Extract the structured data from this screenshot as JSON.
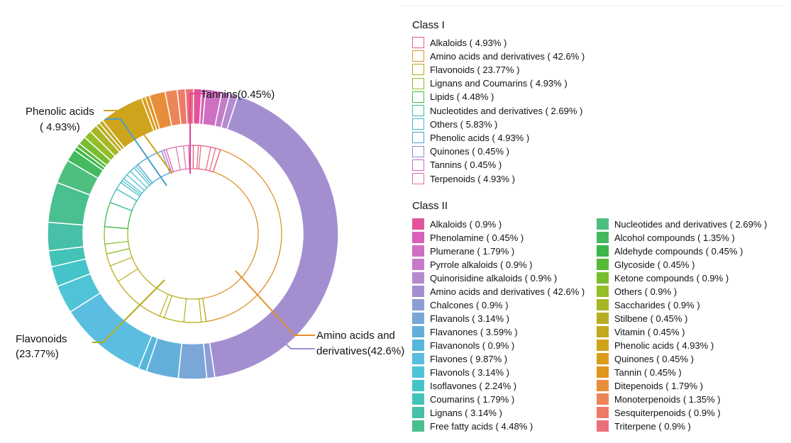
{
  "chart_data": {
    "type": "sunburst",
    "classI_title": "Class I",
    "classII_title": "Class II",
    "classI": [
      {
        "label": "Alkaloids ( 4.93% )",
        "name": "Alkaloids",
        "value": 4.93,
        "color": "#e8607e"
      },
      {
        "label": "Amino acids and derivatives ( 42.6% )",
        "name": "Amino acids and derivatives",
        "value": 42.6,
        "color": "#e0902a"
      },
      {
        "label": "Flavonoids ( 23.77% )",
        "name": "Flavonoids",
        "value": 23.77,
        "color": "#b8ac1a"
      },
      {
        "label": "Lignans and Coumarins ( 4.93% )",
        "name": "Lignans and Coumarins",
        "value": 4.93,
        "color": "#8cbf2a"
      },
      {
        "label": "Lipids ( 4.48% )",
        "name": "Lipids",
        "value": 4.48,
        "color": "#3fba4a"
      },
      {
        "label": "Nucleotides and derivatives ( 2.69% )",
        "name": "Nucleotides and derivatives",
        "value": 2.69,
        "color": "#3cb8a0"
      },
      {
        "label": "Others ( 5.83% )",
        "name": "Others",
        "value": 5.83,
        "color": "#3fb9c8"
      },
      {
        "label": "Phenolic acids ( 4.93% )",
        "name": "Phenolic acids",
        "value": 4.93,
        "color": "#4a9fd0"
      },
      {
        "label": "Quinones ( 0.45% )",
        "name": "Quinones",
        "value": 0.45,
        "color": "#8d8cd0"
      },
      {
        "label": "Tannins ( 0.45% )",
        "name": "Tannins",
        "value": 0.45,
        "color": "#cc66cc"
      },
      {
        "label": "Terpenoids ( 4.93% )",
        "name": "Terpenoids",
        "value": 4.93,
        "color": "#e070a8"
      }
    ],
    "classII": [
      {
        "label": "Alkaloids ( 0.9% )",
        "value": 0.9,
        "color": "#e2539c"
      },
      {
        "label": "Phenolamine ( 0.45% )",
        "value": 0.45,
        "color": "#d860b8"
      },
      {
        "label": "Plumerane ( 1.79% )",
        "value": 1.79,
        "color": "#cf6fc2"
      },
      {
        "label": "Pyrrole alkaloids ( 0.9% )",
        "value": 0.9,
        "color": "#c47cc8"
      },
      {
        "label": "Quinorisidine alkaloids ( 0.9% )",
        "value": 0.9,
        "color": "#b58bcf"
      },
      {
        "label": "Amino acids and derivatives ( 42.6% )",
        "value": 42.6,
        "color": "#a38fd0"
      },
      {
        "label": "Chalcones ( 0.9% )",
        "value": 0.9,
        "color": "#8c9ed4"
      },
      {
        "label": "Flavanols ( 3.14% )",
        "value": 3.14,
        "color": "#7aa6d8"
      },
      {
        "label": "Flavanones ( 3.59% )",
        "value": 3.59,
        "color": "#62b0da"
      },
      {
        "label": "Flavanonols ( 0.9% )",
        "value": 0.9,
        "color": "#56b6dc"
      },
      {
        "label": "Flavones ( 9.87% )",
        "value": 9.87,
        "color": "#5bbde0"
      },
      {
        "label": "Flavonols ( 3.14% )",
        "value": 3.14,
        "color": "#4fc4d6"
      },
      {
        "label": "Isoflavones ( 2.24% )",
        "value": 2.24,
        "color": "#44c4c8"
      },
      {
        "label": "Coumarins ( 1.79% )",
        "value": 1.79,
        "color": "#43c2b8"
      },
      {
        "label": "Lignans ( 3.14% )",
        "value": 3.14,
        "color": "#46c0a6"
      },
      {
        "label": "Free fatty acids ( 4.48% )",
        "value": 4.48,
        "color": "#4abf90"
      },
      {
        "label": "Nucleotides and derivatives ( 2.69% )",
        "value": 2.69,
        "color": "#4fbf80"
      },
      {
        "label": "Alcohol compounds ( 1.35% )",
        "value": 1.35,
        "color": "#44b95e"
      },
      {
        "label": "Aldehyde compounds ( 0.45% )",
        "value": 0.45,
        "color": "#3cb648"
      },
      {
        "label": "Glycoside ( 0.45% )",
        "value": 0.45,
        "color": "#58b838"
      },
      {
        "label": "Ketone compounds ( 0.9% )",
        "value": 0.9,
        "color": "#78bc30"
      },
      {
        "label": "Others ( 0.9% )",
        "value": 0.9,
        "color": "#94be26"
      },
      {
        "label": "Saccharides ( 0.9% )",
        "value": 0.9,
        "color": "#a8b524"
      },
      {
        "label": "Stilbene ( 0.45% )",
        "value": 0.45,
        "color": "#b8ad22"
      },
      {
        "label": "Vitamin ( 0.45% )",
        "value": 0.45,
        "color": "#c2a91e"
      },
      {
        "label": "Phenolic acids ( 4.93% )",
        "value": 4.93,
        "color": "#cda41c"
      },
      {
        "label": "Quinones ( 0.45% )",
        "value": 0.45,
        "color": "#d89e1a"
      },
      {
        "label": "Tannin ( 0.45% )",
        "value": 0.45,
        "color": "#e0951c"
      },
      {
        "label": "Ditepenoids ( 1.79% )",
        "value": 1.79,
        "color": "#e88e3a"
      },
      {
        "label": "Monoterpenoids ( 1.35% )",
        "value": 1.35,
        "color": "#ec8658"
      },
      {
        "label": "Sesquiterpenoids ( 0.9% )",
        "value": 0.9,
        "color": "#ef7a68"
      },
      {
        "label": "Triterpene ( 0.9% )",
        "value": 0.9,
        "color": "#ec6e78"
      }
    ],
    "outer_ring_order": [
      "Amino acids and derivatives ( 42.6% )",
      "Chalcones ( 0.9% )",
      "Flavanols ( 3.14% )",
      "Flavanones ( 3.59% )",
      "Flavanonols ( 0.9% )",
      "Flavones ( 9.87% )",
      "Flavonols ( 3.14% )",
      "Isoflavones ( 2.24% )",
      "Coumarins ( 1.79% )",
      "Lignans ( 3.14% )",
      "Free fatty acids ( 4.48% )",
      "Nucleotides and derivatives ( 2.69% )",
      "Alcohol compounds ( 1.35% )",
      "Aldehyde compounds ( 0.45% )",
      "Glycoside ( 0.45% )",
      "Ketone compounds ( 0.9% )",
      "Others ( 0.9% )",
      "Saccharides ( 0.9% )",
      "Stilbene ( 0.45% )",
      "Vitamin ( 0.45% )",
      "Phenolic acids ( 4.93% )",
      "Quinones ( 0.45% )",
      "Tannin ( 0.45% )",
      "Ditepenoids ( 1.79% )",
      "Monoterpenoids ( 1.35% )",
      "Sesquiterpenoids ( 0.9% )",
      "Triterpene ( 0.9% )",
      "Alkaloids ( 0.9% )",
      "Phenolamine ( 0.45% )",
      "Plumerane ( 1.79% )",
      "Pyrrole alkaloids ( 0.9% )",
      "Quinorisidine alkaloids ( 0.9% )"
    ],
    "inner_ring_order": [
      "Amino acids and derivatives",
      "Flavonoids",
      "Lignans and Coumarins",
      "Lipids",
      "Nucleotides and derivatives",
      "Others",
      "Phenolic acids",
      "Quinones",
      "Tannins",
      "Terpenoids",
      "Alkaloids"
    ],
    "annotations": [
      {
        "text_lines": [
          "Tannins(0.45%)"
        ],
        "target": "Tannins"
      },
      {
        "text_lines": [
          "Phenolic acids",
          "( 4.93%)"
        ],
        "target": "Phenolic acids"
      },
      {
        "text_lines": [
          "Flavonoids",
          "(23.77%)"
        ],
        "target": "Flavonoids"
      },
      {
        "text_lines": [
          "Amino acids and",
          "derivatives(42.6%)"
        ],
        "target": "Amino acids and derivatives"
      }
    ]
  }
}
